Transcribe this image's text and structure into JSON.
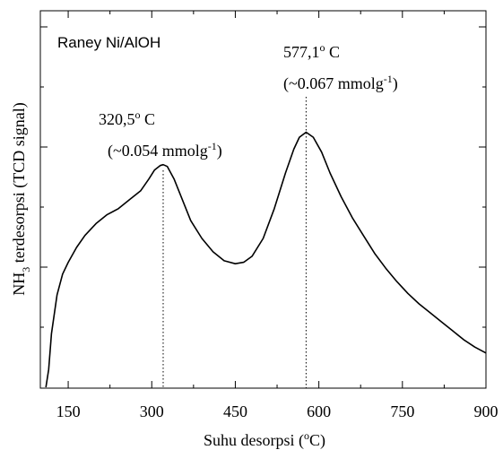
{
  "chart_data": {
    "type": "line",
    "title": "",
    "inset_label": "Raney Ni/AlOH",
    "xlabel": {
      "prefix": "Suhu desorpsi (",
      "sup": "o",
      "suffix": "C)"
    },
    "ylabel": {
      "nh": "NH",
      "sub": "3",
      "rest": " terdesorpsi (TCD signal)"
    },
    "xlim": [
      100,
      900
    ],
    "x_ticks": [
      150,
      300,
      450,
      600,
      750,
      900
    ],
    "x_tick_labels": [
      "150",
      "300",
      "450",
      "600",
      "750",
      "900"
    ],
    "ylim": [
      0,
      1
    ],
    "y_tick_labels_shown": false,
    "grid": false,
    "legend": "none",
    "line_color": "#000000",
    "peaks": [
      {
        "x": 320.5,
        "temp_text": {
          "value": "320,5",
          "sup": "o",
          "unit": " C"
        },
        "amount_text": {
          "prefix": "(~0.054 mmolg",
          "sup": "-1",
          "suffix": ")"
        }
      },
      {
        "x": 577.1,
        "temp_text": {
          "value": "577,1",
          "sup": "o",
          "unit": " C"
        },
        "amount_text": {
          "prefix": "(~0.067 mmolg",
          "sup": "-1",
          "suffix": ")"
        }
      }
    ],
    "series": [
      {
        "x": [
          110,
          115,
          120,
          130,
          140,
          150,
          165,
          180,
          200,
          220,
          240,
          260,
          280,
          295,
          305,
          315,
          320.5,
          328,
          340,
          355,
          370,
          390,
          410,
          430,
          450,
          465,
          480,
          500,
          520,
          540,
          555,
          565,
          577.1,
          590,
          605,
          620,
          640,
          660,
          680,
          700,
          720,
          740,
          760,
          780,
          800,
          820,
          840,
          860,
          880,
          900
        ],
        "y": [
          0.0,
          0.06,
          0.18,
          0.31,
          0.38,
          0.42,
          0.47,
          0.51,
          0.55,
          0.58,
          0.6,
          0.63,
          0.66,
          0.7,
          0.73,
          0.745,
          0.748,
          0.742,
          0.7,
          0.63,
          0.56,
          0.5,
          0.455,
          0.425,
          0.415,
          0.42,
          0.44,
          0.5,
          0.6,
          0.72,
          0.8,
          0.84,
          0.857,
          0.84,
          0.79,
          0.72,
          0.64,
          0.57,
          0.51,
          0.45,
          0.4,
          0.355,
          0.315,
          0.28,
          0.25,
          0.22,
          0.19,
          0.16,
          0.135,
          0.115
        ]
      }
    ]
  }
}
